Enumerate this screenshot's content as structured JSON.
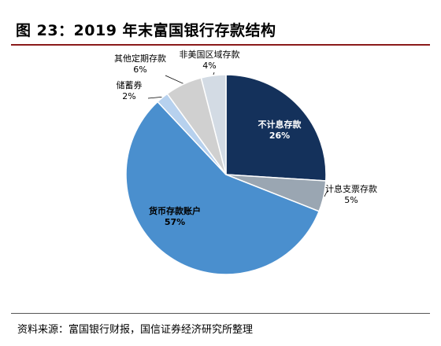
{
  "header": {
    "title": "图 23：2019 年末富国银行存款结构"
  },
  "footer": {
    "source": "资料来源：富国银行财报，国信证券经济研究所整理"
  },
  "chart_data": {
    "type": "pie",
    "title": "图 23：2019 年末富国银行存款结构",
    "unit": "%",
    "start_angle": "12 o'clock, clockwise",
    "slices": [
      {
        "label": "不计息存款",
        "value": 26,
        "value_label": "26%",
        "color": "#14315b",
        "label_placement": "inside",
        "label_color": "#ffffff"
      },
      {
        "label": "计息支票存款",
        "value": 5,
        "value_label": "5%",
        "color": "#9aa6b2",
        "label_placement": "outside",
        "label_color": "#000000"
      },
      {
        "label": "货币存款账户",
        "value": 57,
        "value_label": "57%",
        "color": "#4a8fce",
        "label_placement": "inside",
        "label_color": "#000000"
      },
      {
        "label": "储蓄券",
        "value": 2,
        "value_label": "2%",
        "color": "#b7d1ee",
        "label_placement": "outside",
        "label_color": "#000000"
      },
      {
        "label": "其他定期存款",
        "value": 6,
        "value_label": "6%",
        "color": "#d0d0d0",
        "label_placement": "outside",
        "label_color": "#000000"
      },
      {
        "label": "非美国区域存款",
        "value": 4,
        "value_label": "4%",
        "color": "#d3dbe4",
        "label_placement": "outside",
        "label_color": "#000000"
      }
    ]
  }
}
